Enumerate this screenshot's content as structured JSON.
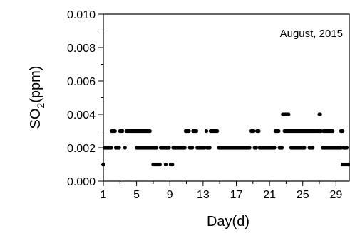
{
  "chart_data": {
    "type": "scatter",
    "annotation": "August, 2015",
    "xlabel": "Day(d)",
    "ylabel_main": "SO",
    "ylabel_sub": "2",
    "ylabel_tail": "(ppm)",
    "xlim": [
      1,
      30.6
    ],
    "ylim": [
      0,
      0.01
    ],
    "xticks": [
      1,
      5,
      9,
      13,
      17,
      21,
      25,
      29
    ],
    "xticks_minor": [
      3,
      7,
      11,
      15,
      19,
      23,
      27
    ],
    "yticks": [
      0.0,
      0.002,
      0.004,
      0.006,
      0.008,
      0.01
    ],
    "yticks_minor": [
      0.001,
      0.003,
      0.005,
      0.007,
      0.009
    ],
    "ytick_labels": [
      "0.000",
      "0.002",
      "0.004",
      "0.006",
      "0.008",
      "0.010"
    ],
    "xtick_labels": [
      "1",
      "5",
      "9",
      "13",
      "17",
      "21",
      "25",
      "29"
    ],
    "marker_color": "#000000",
    "series": [
      {
        "segments": [
          {
            "x0": 1.0,
            "x1": 1.05,
            "step": 0.1,
            "y": 0.001
          },
          {
            "x0": 1.15,
            "x1": 1.95,
            "step": 0.1,
            "y": 0.002
          },
          {
            "x0": 2.0,
            "x1": 2.4,
            "step": 0.1,
            "y": 0.003
          },
          {
            "x0": 2.5,
            "x1": 2.9,
            "step": 0.1,
            "y": 0.002
          },
          {
            "x0": 3.0,
            "x1": 3.3,
            "step": 0.1,
            "y": 0.003
          },
          {
            "x0": 3.6,
            "x1": 3.6,
            "step": 0.1,
            "y": 0.002
          },
          {
            "x0": 3.8,
            "x1": 6.6,
            "step": 0.1,
            "y": 0.003
          },
          {
            "x0": 5.0,
            "x1": 6.5,
            "step": 0.1,
            "y": 0.002
          },
          {
            "x0": 6.6,
            "x1": 7.4,
            "step": 0.1,
            "y": 0.002
          },
          {
            "x0": 7.0,
            "x1": 7.8,
            "step": 0.1,
            "y": 0.001
          },
          {
            "x0": 7.9,
            "x1": 8.9,
            "step": 0.1,
            "y": 0.002
          },
          {
            "x0": 8.5,
            "x1": 8.5,
            "step": 0.1,
            "y": 0.001
          },
          {
            "x0": 9.1,
            "x1": 9.3,
            "step": 0.1,
            "y": 0.001
          },
          {
            "x0": 9.4,
            "x1": 10.8,
            "step": 0.1,
            "y": 0.002
          },
          {
            "x0": 10.9,
            "x1": 11.3,
            "step": 0.1,
            "y": 0.003
          },
          {
            "x0": 11.4,
            "x1": 11.7,
            "step": 0.1,
            "y": 0.002
          },
          {
            "x0": 11.8,
            "x1": 12.2,
            "step": 0.1,
            "y": 0.003
          },
          {
            "x0": 12.3,
            "x1": 13.2,
            "step": 0.1,
            "y": 0.002
          },
          {
            "x0": 13.4,
            "x1": 13.4,
            "step": 0.1,
            "y": 0.003
          },
          {
            "x0": 13.5,
            "x1": 13.8,
            "step": 0.1,
            "y": 0.002
          },
          {
            "x0": 13.9,
            "x1": 14.7,
            "step": 0.1,
            "y": 0.003
          },
          {
            "x0": 14.9,
            "x1": 18.6,
            "step": 0.1,
            "y": 0.002
          },
          {
            "x0": 18.8,
            "x1": 19.1,
            "step": 0.1,
            "y": 0.003
          },
          {
            "x0": 19.2,
            "x1": 19.4,
            "step": 0.1,
            "y": 0.002
          },
          {
            "x0": 19.5,
            "x1": 19.7,
            "step": 0.1,
            "y": 0.003
          },
          {
            "x0": 19.8,
            "x1": 21.6,
            "step": 0.1,
            "y": 0.002
          },
          {
            "x0": 21.7,
            "x1": 22.1,
            "step": 0.1,
            "y": 0.003
          },
          {
            "x0": 22.2,
            "x1": 22.5,
            "step": 0.1,
            "y": 0.002
          },
          {
            "x0": 22.6,
            "x1": 23.3,
            "step": 0.1,
            "y": 0.004
          },
          {
            "x0": 22.8,
            "x1": 26.5,
            "step": 0.1,
            "y": 0.003
          },
          {
            "x0": 23.6,
            "x1": 25.2,
            "step": 0.1,
            "y": 0.002
          },
          {
            "x0": 25.8,
            "x1": 26.2,
            "step": 0.1,
            "y": 0.002
          },
          {
            "x0": 26.7,
            "x1": 27.2,
            "step": 0.1,
            "y": 0.003
          },
          {
            "x0": 27.0,
            "x1": 27.1,
            "step": 0.1,
            "y": 0.004
          },
          {
            "x0": 27.4,
            "x1": 28.4,
            "step": 0.1,
            "y": 0.002
          },
          {
            "x0": 27.5,
            "x1": 28.6,
            "step": 0.1,
            "y": 0.003
          },
          {
            "x0": 28.5,
            "x1": 29.6,
            "step": 0.1,
            "y": 0.002
          },
          {
            "x0": 29.6,
            "x1": 29.8,
            "step": 0.1,
            "y": 0.003
          },
          {
            "x0": 29.8,
            "x1": 30.6,
            "step": 0.1,
            "y": 0.001
          },
          {
            "x0": 29.9,
            "x1": 30.3,
            "step": 0.1,
            "y": 0.002
          }
        ]
      }
    ]
  }
}
